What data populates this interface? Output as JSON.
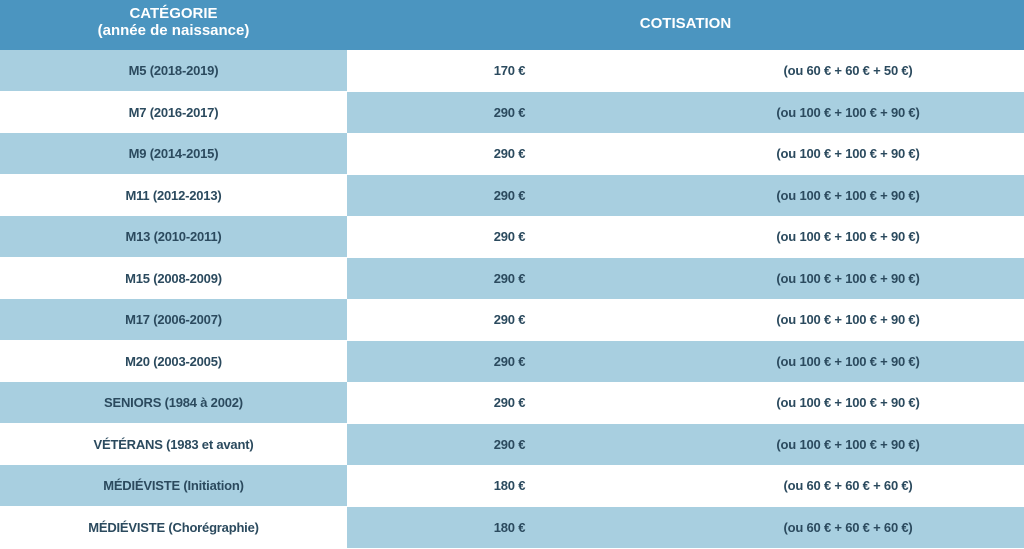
{
  "header": {
    "category_line1": "CATÉGORIE",
    "category_line2": "(année de naissance)",
    "cotisation": "COTISATION"
  },
  "rows": [
    {
      "category": "M5  (2018-2019)",
      "price": "170 €",
      "split": "(ou 60 € + 60 € + 50 €)"
    },
    {
      "category": "M7 (2016-2017)",
      "price": "290 €",
      "split": "(ou 100 € + 100 € + 90 €)"
    },
    {
      "category": "M9 (2014-2015)",
      "price": "290 €",
      "split": "(ou 100 € + 100 € + 90 €)"
    },
    {
      "category": "M11 (2012-2013)",
      "price": "290 €",
      "split": "(ou 100 € + 100 € + 90 €)"
    },
    {
      "category": "M13  (2010-2011)",
      "price": "290 €",
      "split": "(ou 100 € + 100 € + 90 €)"
    },
    {
      "category": "M15  (2008-2009)",
      "price": "290 €",
      "split": "(ou 100 € + 100 € + 90 €)"
    },
    {
      "category": "M17  (2006-2007)",
      "price": "290 €",
      "split": "(ou 100 € + 100 € + 90 €)"
    },
    {
      "category": "M20  (2003-2005)",
      "price": "290 €",
      "split": "(ou 100 € + 100 € + 90 €)"
    },
    {
      "category": "SENIORS (1984 à 2002)",
      "price": "290 €",
      "split": "(ou 100 € + 100 € + 90 €)"
    },
    {
      "category": "VÉTÉRANS  (1983 et avant)",
      "price": "290 €",
      "split": "(ou 100 € + 100 € + 90 €)"
    },
    {
      "category": "MÉDIÉVISTE  (Initiation)",
      "price": "180 €",
      "split": "(ou 60 € + 60 € + 60 €)"
    },
    {
      "category": "MÉDIÉVISTE  (Chorégraphie)",
      "price": "180 €",
      "split": "(ou 60 € + 60 € + 60 €)"
    }
  ],
  "colors": {
    "header_bg": "#4b95c0",
    "row_blue": "#a8cfe0",
    "row_white": "#ffffff",
    "text": "#2b4a5e"
  }
}
